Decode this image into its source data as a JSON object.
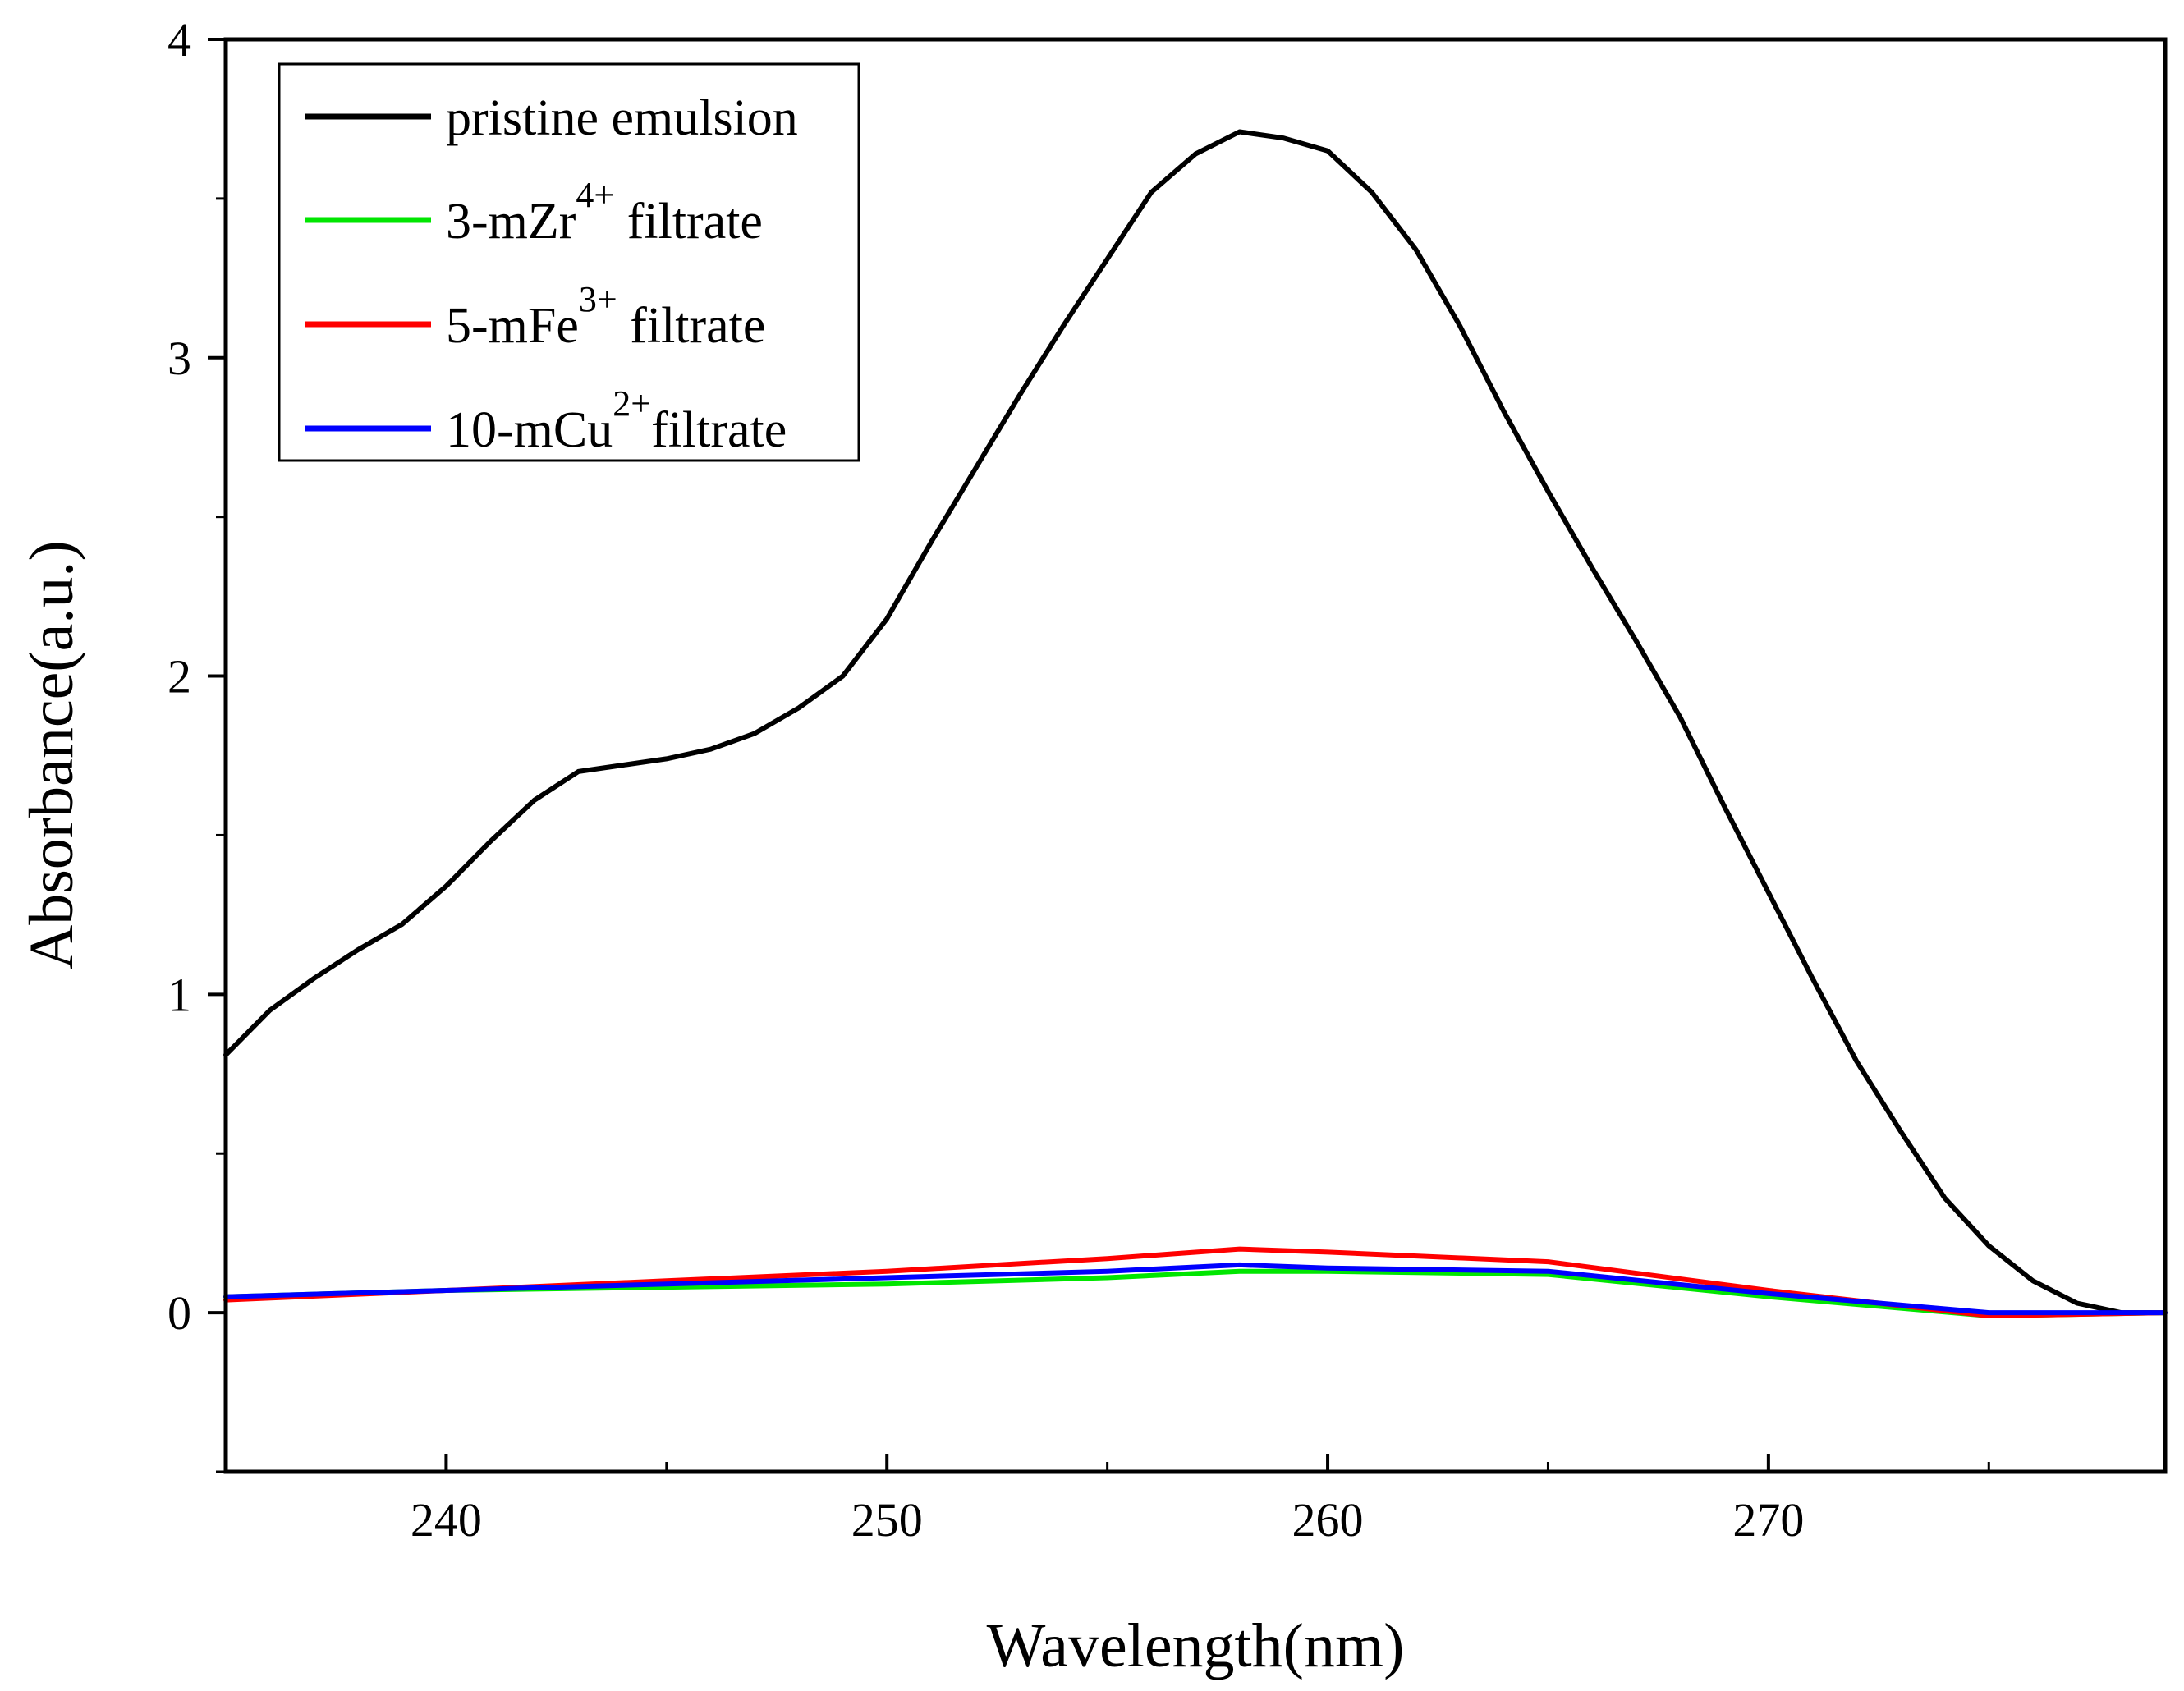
{
  "chart_data": {
    "type": "line",
    "title": "",
    "xlabel": "Wavelength(nm)",
    "ylabel": "Absorbance(a.u.)",
    "xlim": [
      235,
      279
    ],
    "ylim": [
      -0.5,
      4
    ],
    "xticks": [
      240,
      250,
      260,
      270
    ],
    "yticks": [
      0,
      1,
      2,
      3,
      4
    ],
    "xtick_labels": [
      "240",
      "250",
      "260",
      "270"
    ],
    "ytick_labels": [
      "0",
      "1",
      "2",
      "3",
      "4"
    ],
    "grid": false,
    "legend_position": "top-left",
    "series": [
      {
        "name": "pristine emulsion",
        "legend_base": "pristine emulsion",
        "legend_sup": "",
        "legend_suffix": "",
        "color": "#000000",
        "x": [
          235,
          236,
          237,
          238,
          239,
          240,
          241,
          242,
          243,
          244,
          245,
          246,
          247,
          248,
          249,
          250,
          251,
          252,
          253,
          254,
          255,
          256,
          257,
          258,
          259,
          260,
          261,
          262,
          263,
          264,
          265,
          266,
          267,
          268,
          269,
          270,
          271,
          272,
          273,
          274,
          275,
          276,
          277,
          278,
          279
        ],
        "y": [
          0.81,
          0.95,
          1.05,
          1.14,
          1.22,
          1.34,
          1.48,
          1.61,
          1.7,
          1.72,
          1.74,
          1.77,
          1.82,
          1.9,
          2.0,
          2.18,
          2.42,
          2.65,
          2.88,
          3.1,
          3.31,
          3.52,
          3.64,
          3.71,
          3.69,
          3.65,
          3.52,
          3.34,
          3.1,
          2.83,
          2.58,
          2.34,
          2.11,
          1.87,
          1.59,
          1.32,
          1.05,
          0.79,
          0.57,
          0.36,
          0.21,
          0.1,
          0.03,
          0.0,
          0.0
        ]
      },
      {
        "name": "3-mZr4+ filtrate",
        "legend_base": "3-mZr",
        "legend_sup": "4+",
        "legend_suffix": " filtrate",
        "color": "#00e600",
        "x": [
          235,
          240,
          245,
          250,
          255,
          258,
          260,
          265,
          270,
          275,
          279
        ],
        "y": [
          0.05,
          0.07,
          0.08,
          0.09,
          0.11,
          0.13,
          0.13,
          0.12,
          0.05,
          -0.01,
          0.0
        ]
      },
      {
        "name": "5-mFe3+ filtrate",
        "legend_base": "5-mFe",
        "legend_sup": "3+",
        "legend_suffix": " filtrate",
        "color": "#ff0000",
        "x": [
          235,
          240,
          245,
          250,
          255,
          258,
          260,
          265,
          270,
          275,
          279
        ],
        "y": [
          0.04,
          0.07,
          0.1,
          0.13,
          0.17,
          0.2,
          0.19,
          0.16,
          0.07,
          -0.01,
          0.0
        ]
      },
      {
        "name": "10-mCu2+filtrate",
        "legend_base": "10-mCu",
        "legend_sup": "2+",
        "legend_suffix": "filtrate",
        "color": "#0000ff",
        "x": [
          235,
          240,
          245,
          250,
          255,
          258,
          260,
          265,
          270,
          275,
          279
        ],
        "y": [
          0.05,
          0.07,
          0.09,
          0.11,
          0.13,
          0.15,
          0.14,
          0.13,
          0.06,
          0.0,
          0.0
        ]
      }
    ]
  }
}
